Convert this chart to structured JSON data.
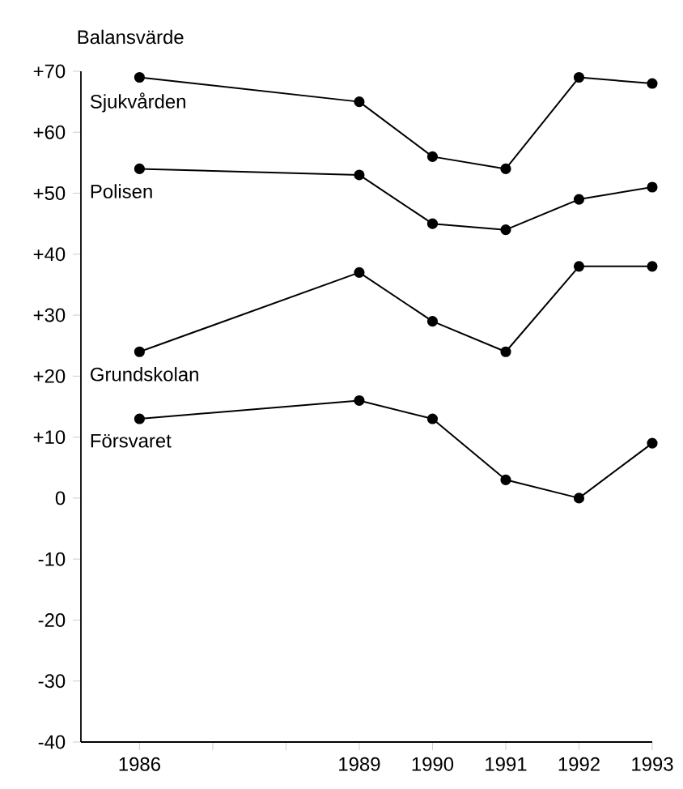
{
  "chart_data": {
    "type": "line",
    "ylabel": "Balansvärde",
    "x": [
      1986,
      1989,
      1990,
      1991,
      1992,
      1993
    ],
    "series": [
      {
        "name": "Sjukvården",
        "color": "#000000",
        "values": [
          69,
          65,
          56,
          54,
          69,
          68
        ]
      },
      {
        "name": "Polisen",
        "color": "#000000",
        "values": [
          54,
          53,
          45,
          44,
          49,
          51
        ]
      },
      {
        "name": "Grundskolan",
        "color": "#000000",
        "values": [
          24,
          37,
          29,
          24,
          38,
          38
        ]
      },
      {
        "name": "Försvaret",
        "color": "#000000",
        "values": [
          13,
          16,
          13,
          3,
          0,
          9
        ]
      }
    ],
    "xlim": [
      1985.2,
      1993
    ],
    "ylim": [
      -40,
      70
    ],
    "xticks": [
      1986,
      {
        "value": 1987,
        "label": null
      },
      {
        "value": 1988,
        "label": null
      },
      1989,
      1990,
      1991,
      1992,
      1993
    ],
    "yticks": [
      {
        "value": 70,
        "label": "+70"
      },
      {
        "value": 60,
        "label": "+60"
      },
      {
        "value": 50,
        "label": "+50"
      },
      {
        "value": 40,
        "label": "+40"
      },
      {
        "value": 30,
        "label": "+30"
      },
      {
        "value": 20,
        "label": "+20"
      },
      {
        "value": 10,
        "label": "+10"
      },
      0,
      -10,
      -20,
      -30,
      -40
    ],
    "marker": "circle",
    "line_style": "solid",
    "grid": false,
    "legend": false
  }
}
